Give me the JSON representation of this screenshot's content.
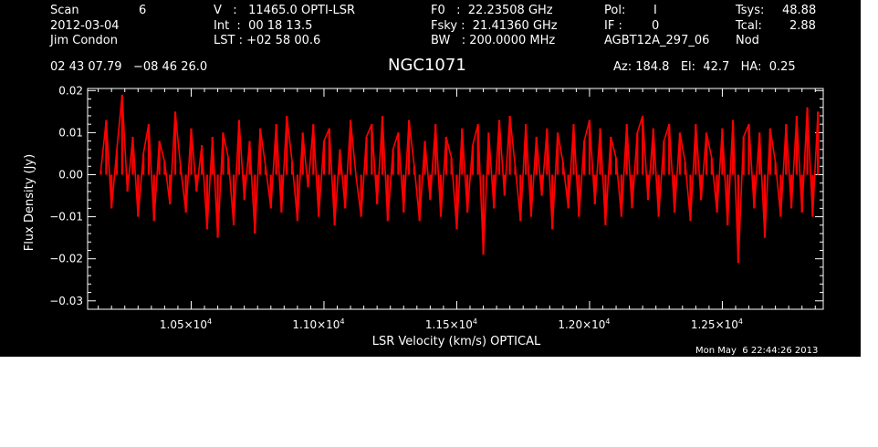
{
  "header": {
    "scan_label": "Scan",
    "scan_value": "6",
    "date": "2012-03-04",
    "observer": "Jim Condon",
    "v_line": "V   :   11465.0 OPTI-LSR",
    "int_line": "Int  :  00 18 13.5",
    "lst_line": "LST : +02 58 00.6",
    "f0_line": "F0   :  22.23508 GHz",
    "fsky_line": "Fsky :  21.41360 GHz",
    "bw_line": "BW   : 200.0000 MHz",
    "pol_label": "Pol:",
    "pol_value": "I",
    "if_label": "IF :",
    "if_value": "0",
    "project": "AGBT12A_297_06",
    "tsys_label": "Tsys:",
    "tsys_value": "48.88",
    "tcal_label": "Tcal:",
    "tcal_value": "2.88",
    "mode": "Nod",
    "coords": "02 43 07.79   −08 46 26.0",
    "source": "NGC1071",
    "az_line": "Az: 184.8   El:  42.7   HA:  0.25"
  },
  "footer": {
    "timestamp": "Mon May  6 22:44:26 2013"
  },
  "chart_data": {
    "type": "line",
    "title": "NGC1071",
    "xlabel": "LSR Velocity (km/s) OPTICAL",
    "ylabel": "Flux Density (Jy)",
    "xlim": [
      10110,
      12880
    ],
    "ylim": [
      -0.032,
      0.0205
    ],
    "x_ticks": [
      {
        "value": 10500,
        "mant": "1.05",
        "exp": "4"
      },
      {
        "value": 11000,
        "mant": "1.10",
        "exp": "4"
      },
      {
        "value": 11500,
        "mant": "1.15",
        "exp": "4"
      },
      {
        "value": 12000,
        "mant": "1.20",
        "exp": "4"
      },
      {
        "value": 12500,
        "mant": "1.25",
        "exp": "4"
      }
    ],
    "y_ticks": [
      {
        "value": 0.02,
        "label": "0.02"
      },
      {
        "value": 0.01,
        "label": "0.01"
      },
      {
        "value": 0.0,
        "label": "0.00"
      },
      {
        "value": -0.01,
        "label": "−0.01"
      },
      {
        "value": -0.02,
        "label": "−0.02"
      },
      {
        "value": -0.03,
        "label": "−0.03"
      }
    ],
    "series": [
      {
        "color": "#ff0000",
        "x": [
          10160,
          10180,
          10200,
          10220,
          10240,
          10260,
          10280,
          10300,
          10320,
          10340,
          10360,
          10380,
          10400,
          10420,
          10440,
          10460,
          10480,
          10500,
          10520,
          10540,
          10560,
          10580,
          10600,
          10620,
          10640,
          10660,
          10680,
          10700,
          10720,
          10740,
          10760,
          10780,
          10800,
          10820,
          10840,
          10860,
          10880,
          10900,
          10920,
          10940,
          10960,
          10980,
          11000,
          11020,
          11040,
          11060,
          11080,
          11100,
          11120,
          11140,
          11160,
          11180,
          11200,
          11220,
          11240,
          11260,
          11280,
          11300,
          11320,
          11340,
          11360,
          11380,
          11400,
          11420,
          11440,
          11460,
          11480,
          11500,
          11520,
          11540,
          11560,
          11580,
          11600,
          11620,
          11640,
          11660,
          11680,
          11700,
          11720,
          11740,
          11760,
          11780,
          11800,
          11820,
          11840,
          11860,
          11880,
          11900,
          11920,
          11940,
          11960,
          11980,
          12000,
          12020,
          12040,
          12060,
          12080,
          12100,
          12120,
          12140,
          12160,
          12180,
          12200,
          12220,
          12240,
          12260,
          12280,
          12300,
          12320,
          12340,
          12360,
          12380,
          12400,
          12420,
          12440,
          12460,
          12480,
          12500,
          12520,
          12540,
          12560,
          12580,
          12600,
          12620,
          12640,
          12660,
          12680,
          12700,
          12720,
          12740,
          12760,
          12780,
          12800,
          12820,
          12840,
          12860
        ],
        "y": [
          0.001,
          0.013,
          -0.008,
          0.006,
          0.019,
          -0.004,
          0.009,
          -0.01,
          0.005,
          0.012,
          -0.011,
          0.008,
          0.003,
          -0.007,
          0.015,
          0.002,
          -0.009,
          0.011,
          -0.004,
          0.007,
          -0.013,
          0.009,
          -0.015,
          0.01,
          0.004,
          -0.012,
          0.013,
          -0.006,
          0.008,
          -0.014,
          0.011,
          0.002,
          -0.008,
          0.012,
          -0.009,
          0.014,
          0.003,
          -0.011,
          0.01,
          -0.003,
          0.012,
          -0.01,
          0.008,
          0.011,
          -0.012,
          0.006,
          -0.008,
          0.013,
          0.0,
          -0.01,
          0.009,
          0.012,
          -0.007,
          0.014,
          -0.011,
          0.006,
          0.01,
          -0.009,
          0.013,
          0.002,
          -0.011,
          0.008,
          -0.006,
          0.012,
          -0.01,
          0.009,
          0.004,
          -0.013,
          0.011,
          -0.009,
          0.007,
          0.012,
          -0.019,
          0.01,
          -0.008,
          0.013,
          -0.005,
          0.014,
          0.002,
          -0.011,
          0.012,
          -0.01,
          0.009,
          -0.005,
          0.011,
          -0.013,
          0.01,
          0.003,
          -0.008,
          0.012,
          -0.01,
          0.008,
          0.013,
          -0.007,
          0.011,
          -0.012,
          0.009,
          0.004,
          -0.01,
          0.012,
          -0.008,
          0.01,
          0.014,
          -0.006,
          0.011,
          -0.01,
          0.008,
          0.012,
          -0.009,
          0.01,
          0.003,
          -0.011,
          0.012,
          -0.006,
          0.01,
          0.004,
          -0.009,
          0.011,
          -0.012,
          0.013,
          -0.021,
          0.009,
          0.012,
          -0.008,
          0.01,
          -0.015,
          0.011,
          0.003,
          -0.01,
          0.012,
          -0.008,
          0.014,
          -0.009,
          0.016,
          -0.01,
          0.015
        ]
      }
    ]
  }
}
